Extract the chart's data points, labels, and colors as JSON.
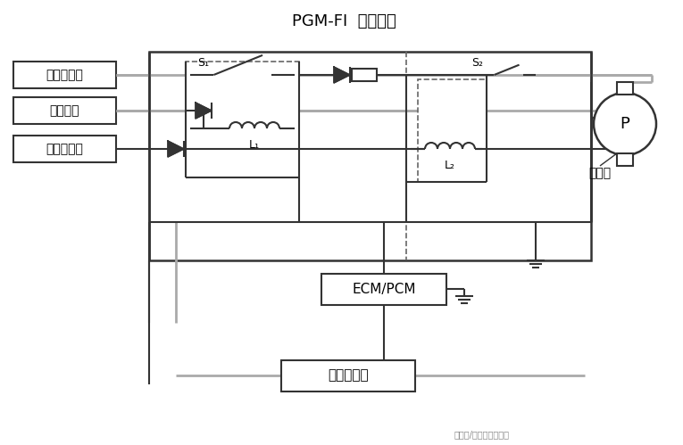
{
  "title": "PGM-FI  主继电器",
  "bg_color": "#ffffff",
  "line_color": "#333333",
  "gray_color": "#aaaaaa",
  "labels_left": [
    "蓄电池电压",
    "点火开关",
    "起动机信号"
  ],
  "label_ecm": "ECM/PCM",
  "label_injector": "燃油喷射器",
  "label_pump": "P",
  "label_pump_text": "燃油泵",
  "label_s1": "S₁",
  "label_s2": "S₂",
  "label_l1": "L₁",
  "label_l2": "L₂",
  "watermark": "头条号/汽修技师众微联"
}
